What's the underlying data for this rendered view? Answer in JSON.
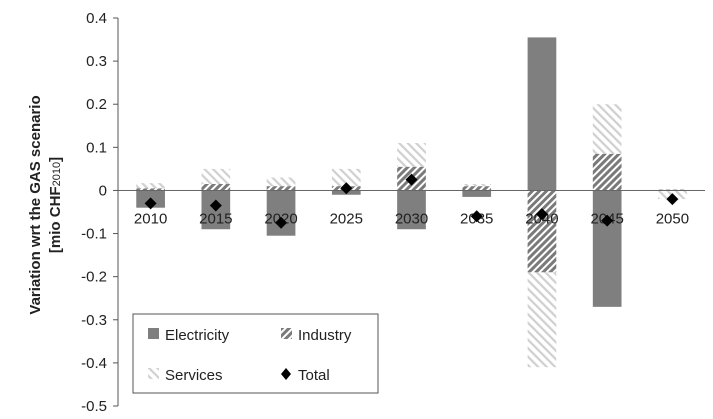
{
  "chart_data": {
    "type": "bar",
    "stacked": true,
    "categories": [
      "2010",
      "2015",
      "2020",
      "2025",
      "2030",
      "2035",
      "2040",
      "2045",
      "2050"
    ],
    "series": [
      {
        "name": "Electricity",
        "pattern": "solid",
        "color": "#7f7f7f",
        "values": [
          -0.04,
          -0.09,
          -0.105,
          -0.01,
          -0.09,
          -0.015,
          0.355,
          -0.27,
          0.0
        ]
      },
      {
        "name": "Industry",
        "pattern": "dense-diagonal",
        "color": "#7f7f7f",
        "values": [
          0.005,
          0.015,
          0.01,
          0.01,
          0.055,
          0.01,
          -0.19,
          0.085,
          0.002
        ]
      },
      {
        "name": "Services",
        "pattern": "light-diagonal",
        "color": "#cfcfcf",
        "values": [
          0.012,
          0.035,
          0.02,
          0.04,
          0.055,
          0.005,
          -0.22,
          0.115,
          -0.02
        ]
      }
    ],
    "markers": {
      "name": "Total",
      "shape": "diamond",
      "color": "#000000",
      "values": [
        -0.03,
        -0.035,
        -0.075,
        0.005,
        0.025,
        -0.06,
        -0.055,
        -0.07,
        -0.02
      ]
    },
    "ylabel_line1": "Variation wrt the GAS scenario",
    "ylabel_line2_prefix": "[mio CHF",
    "ylabel_line2_sub": "2010",
    "ylabel_line2_suffix": "]",
    "ylim": [
      -0.5,
      0.4
    ],
    "yticks": [
      "-0.5",
      "-0.4",
      "-0.3",
      "-0.2",
      "-0.1",
      "0",
      "0.1",
      "0.2",
      "0.3",
      "0.4"
    ],
    "ytick_values": [
      -0.5,
      -0.4,
      -0.3,
      -0.2,
      -0.1,
      0,
      0.1,
      0.2,
      0.3,
      0.4
    ],
    "grid": false,
    "legend": {
      "position": "bottom-left",
      "entries": [
        "Electricity",
        "Industry",
        "Services",
        "Total"
      ]
    }
  }
}
